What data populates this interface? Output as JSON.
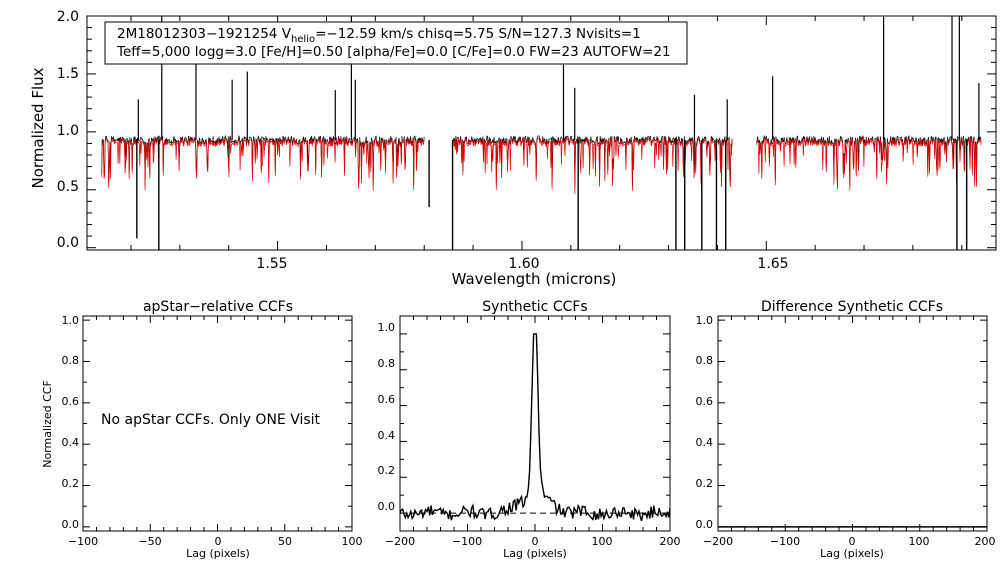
{
  "chart_data": [
    {
      "type": "line",
      "name": "spectrum",
      "xlabel": "Wavelength (microns)",
      "ylabel": "Normalized Flux",
      "xlim": [
        1.511,
        1.697
      ],
      "ylim": [
        -0.02,
        2.0
      ],
      "x_ticks": [
        "1.55",
        "1.60",
        "1.65"
      ],
      "y_ticks": [
        "0.0",
        "0.5",
        "1.0",
        "1.5",
        "2.0"
      ],
      "chips": [
        [
          1.514,
          1.58
        ],
        [
          1.586,
          1.643
        ],
        [
          1.648,
          1.694
        ]
      ],
      "continuum": 0.93,
      "info": {
        "line1_star": "2M18012303−1921254",
        "line1_v": "V",
        "line1_helio": "helio",
        "line1_rest": "=−12.59 km/s  chisq=5.75  S/N=127.3  Nvisits=1",
        "line2": "Teff=5,000 logg=3.0 [Fe/H]=0.50 [alpha/Fe]=0.0 [C/Fe]=0.0 FW=23 AUTOFW=21"
      },
      "series": [
        {
          "color": "#000000"
        },
        {
          "color": "#e00000"
        }
      ],
      "spikes_up": [
        {
          "x": 1.5215,
          "y": 1.28
        },
        {
          "x": 1.5263,
          "y": 2.0
        },
        {
          "x": 1.5333,
          "y": 1.62
        },
        {
          "x": 1.5407,
          "y": 1.45
        },
        {
          "x": 1.5438,
          "y": 1.52
        },
        {
          "x": 1.5618,
          "y": 1.36
        },
        {
          "x": 1.5651,
          "y": 2.0
        },
        {
          "x": 1.5659,
          "y": 1.45
        },
        {
          "x": 1.6085,
          "y": 1.78
        },
        {
          "x": 1.6108,
          "y": 1.38
        },
        {
          "x": 1.6353,
          "y": 1.32
        },
        {
          "x": 1.642,
          "y": 1.28
        },
        {
          "x": 1.6513,
          "y": 1.48
        },
        {
          "x": 1.674,
          "y": 2.0
        },
        {
          "x": 1.688,
          "y": 2.0
        },
        {
          "x": 1.6895,
          "y": 2.0
        },
        {
          "x": 1.6935,
          "y": 1.42
        }
      ],
      "spikes_down": [
        {
          "x": 1.5212,
          "y": 0.08
        },
        {
          "x": 1.5257,
          "y": -0.02
        },
        {
          "x": 1.581,
          "y": 0.35
        },
        {
          "x": 1.5858,
          "y": -0.02
        },
        {
          "x": 1.6115,
          "y": -0.02
        },
        {
          "x": 1.6315,
          "y": -0.02
        },
        {
          "x": 1.6333,
          "y": -0.02
        },
        {
          "x": 1.6368,
          "y": -0.02
        },
        {
          "x": 1.6398,
          "y": -0.02
        },
        {
          "x": 1.6417,
          "y": -0.02
        },
        {
          "x": 1.689,
          "y": -0.02
        },
        {
          "x": 1.691,
          "y": -0.02
        }
      ]
    },
    {
      "type": "line",
      "name": "apstar-ccf",
      "title": "apStar−relative CCFs",
      "xlabel": "Lag (pixels)",
      "ylabel": "Normalized CCF",
      "xlim": [
        -100,
        100
      ],
      "ylim": [
        -0.02,
        1.02
      ],
      "x_ticks": [
        "−100",
        "−50",
        "0",
        "50",
        "100"
      ],
      "y_ticks": [
        "0.0",
        "0.2",
        "0.4",
        "0.6",
        "0.8",
        "1.0"
      ],
      "note": "No apStar CCFs.  Only ONE Visit",
      "series": []
    },
    {
      "type": "line",
      "name": "synthetic-ccf",
      "title": "Synthetic CCFs",
      "xlabel": "Lag (pixels)",
      "ylabel": "",
      "xlim": [
        -200,
        200
      ],
      "ylim": [
        -0.1,
        1.1
      ],
      "x_ticks": [
        "−200",
        "−100",
        "0",
        "100",
        "200"
      ],
      "y_ticks": [
        "0.0",
        "0.2",
        "0.4",
        "0.6",
        "0.8",
        "1.0"
      ],
      "zero_line": true,
      "peak": {
        "x": 0,
        "y": 1.0
      },
      "series": [
        {
          "color": "#000000"
        }
      ]
    },
    {
      "type": "line",
      "name": "difference-ccf",
      "title": "Difference Synthetic CCFs",
      "xlabel": "Lag (pixels)",
      "ylabel": "",
      "xlim": [
        -200,
        200
      ],
      "ylim": [
        -0.02,
        1.02
      ],
      "x_ticks": [
        "−200",
        "−100",
        "0",
        "100",
        "200"
      ],
      "y_ticks": [
        "0.0",
        "0.2",
        "0.4",
        "0.6",
        "0.8",
        "1.0"
      ],
      "series": [
        {
          "color": "#000000",
          "x": [
            -200,
            200
          ],
          "y": [
            0.0,
            0.0
          ]
        }
      ]
    }
  ]
}
